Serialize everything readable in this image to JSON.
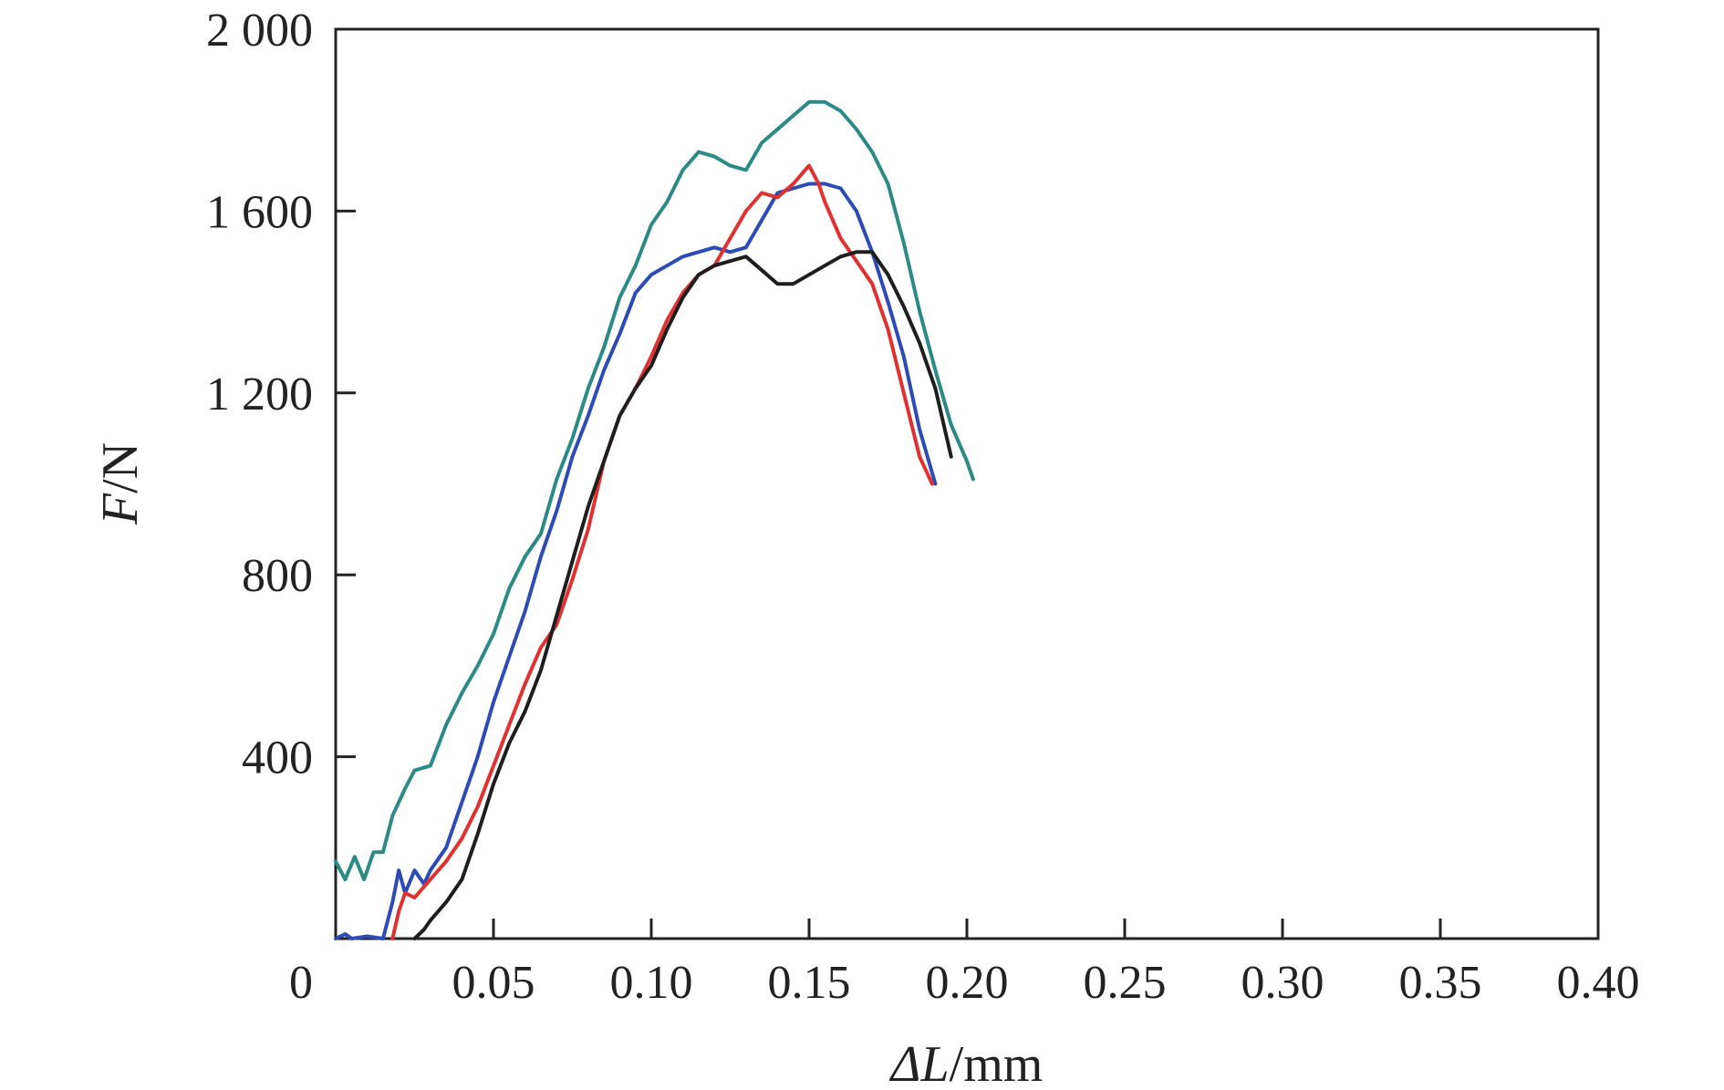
{
  "chart_data": {
    "type": "line",
    "title": "",
    "xlabel": "ΔL/mm",
    "xlabel_parts": {
      "symbol": "ΔL",
      "unit": "/mm"
    },
    "ylabel": "F/N",
    "ylabel_parts": {
      "symbol": "F",
      "unit": "/N"
    },
    "xlim": [
      0,
      0.4
    ],
    "ylim": [
      0,
      2000
    ],
    "xticks": [
      0,
      0.05,
      0.1,
      0.15,
      0.2,
      0.25,
      0.3,
      0.35,
      0.4
    ],
    "xtick_labels": [
      "0",
      "0.05",
      "0.10",
      "0.15",
      "0.20",
      "0.25",
      "0.30",
      "0.35",
      "0.40"
    ],
    "yticks": [
      400,
      800,
      1200,
      1600,
      2000
    ],
    "ytick_labels": [
      "400",
      "800",
      "1 200",
      "1 600",
      "2 000"
    ],
    "grid": false,
    "legend": "none",
    "series": [
      {
        "color": "#2b8a86",
        "x": [
          0.0,
          0.003,
          0.006,
          0.009,
          0.012,
          0.015,
          0.018,
          0.022,
          0.025,
          0.03,
          0.035,
          0.04,
          0.045,
          0.05,
          0.055,
          0.06,
          0.065,
          0.07,
          0.075,
          0.08,
          0.085,
          0.09,
          0.095,
          0.1,
          0.105,
          0.11,
          0.115,
          0.12,
          0.125,
          0.13,
          0.135,
          0.14,
          0.145,
          0.15,
          0.155,
          0.16,
          0.165,
          0.17,
          0.175,
          0.18,
          0.185,
          0.19,
          0.195,
          0.2,
          0.202
        ],
        "y": [
          170,
          130,
          180,
          130,
          190,
          190,
          270,
          330,
          370,
          380,
          470,
          540,
          600,
          670,
          770,
          840,
          890,
          1010,
          1100,
          1210,
          1300,
          1410,
          1480,
          1570,
          1620,
          1690,
          1730,
          1720,
          1700,
          1690,
          1750,
          1780,
          1810,
          1840,
          1840,
          1820,
          1780,
          1730,
          1660,
          1530,
          1380,
          1250,
          1130,
          1050,
          1010
        ]
      },
      {
        "color": "#2c4bb5",
        "x": [
          0.0,
          0.003,
          0.005,
          0.01,
          0.015,
          0.018,
          0.02,
          0.022,
          0.025,
          0.028,
          0.03,
          0.035,
          0.04,
          0.045,
          0.05,
          0.055,
          0.06,
          0.065,
          0.07,
          0.075,
          0.08,
          0.085,
          0.09,
          0.095,
          0.1,
          0.105,
          0.11,
          0.115,
          0.12,
          0.125,
          0.13,
          0.135,
          0.14,
          0.145,
          0.15,
          0.155,
          0.16,
          0.165,
          0.17,
          0.175,
          0.18,
          0.185,
          0.19
        ],
        "y": [
          0,
          10,
          0,
          5,
          0,
          80,
          150,
          100,
          150,
          120,
          150,
          200,
          300,
          400,
          520,
          620,
          720,
          840,
          940,
          1060,
          1150,
          1250,
          1330,
          1420,
          1460,
          1480,
          1500,
          1510,
          1520,
          1510,
          1520,
          1580,
          1640,
          1650,
          1660,
          1660,
          1650,
          1600,
          1510,
          1400,
          1280,
          1120,
          1000
        ]
      },
      {
        "color": "#e03030",
        "x": [
          0.018,
          0.02,
          0.022,
          0.025,
          0.03,
          0.035,
          0.04,
          0.045,
          0.05,
          0.055,
          0.06,
          0.065,
          0.07,
          0.075,
          0.08,
          0.085,
          0.09,
          0.095,
          0.1,
          0.105,
          0.11,
          0.115,
          0.12,
          0.125,
          0.13,
          0.135,
          0.14,
          0.145,
          0.15,
          0.153,
          0.155,
          0.16,
          0.165,
          0.17,
          0.175,
          0.18,
          0.185,
          0.189
        ],
        "y": [
          0,
          60,
          100,
          90,
          130,
          170,
          220,
          290,
          380,
          470,
          560,
          640,
          690,
          790,
          900,
          1050,
          1150,
          1210,
          1280,
          1360,
          1420,
          1460,
          1480,
          1540,
          1600,
          1640,
          1630,
          1660,
          1700,
          1660,
          1620,
          1540,
          1490,
          1440,
          1340,
          1200,
          1060,
          1000
        ]
      },
      {
        "color": "#1e1e1e",
        "x": [
          0.025,
          0.028,
          0.03,
          0.035,
          0.04,
          0.045,
          0.05,
          0.055,
          0.06,
          0.065,
          0.07,
          0.075,
          0.08,
          0.085,
          0.09,
          0.095,
          0.1,
          0.105,
          0.11,
          0.115,
          0.12,
          0.125,
          0.13,
          0.135,
          0.14,
          0.145,
          0.15,
          0.155,
          0.16,
          0.165,
          0.17,
          0.175,
          0.18,
          0.185,
          0.19,
          0.195
        ],
        "y": [
          0,
          20,
          40,
          80,
          130,
          230,
          340,
          430,
          500,
          590,
          710,
          830,
          950,
          1050,
          1150,
          1210,
          1260,
          1340,
          1410,
          1460,
          1480,
          1490,
          1500,
          1470,
          1440,
          1440,
          1460,
          1480,
          1500,
          1510,
          1510,
          1460,
          1390,
          1310,
          1210,
          1060
        ]
      }
    ]
  }
}
